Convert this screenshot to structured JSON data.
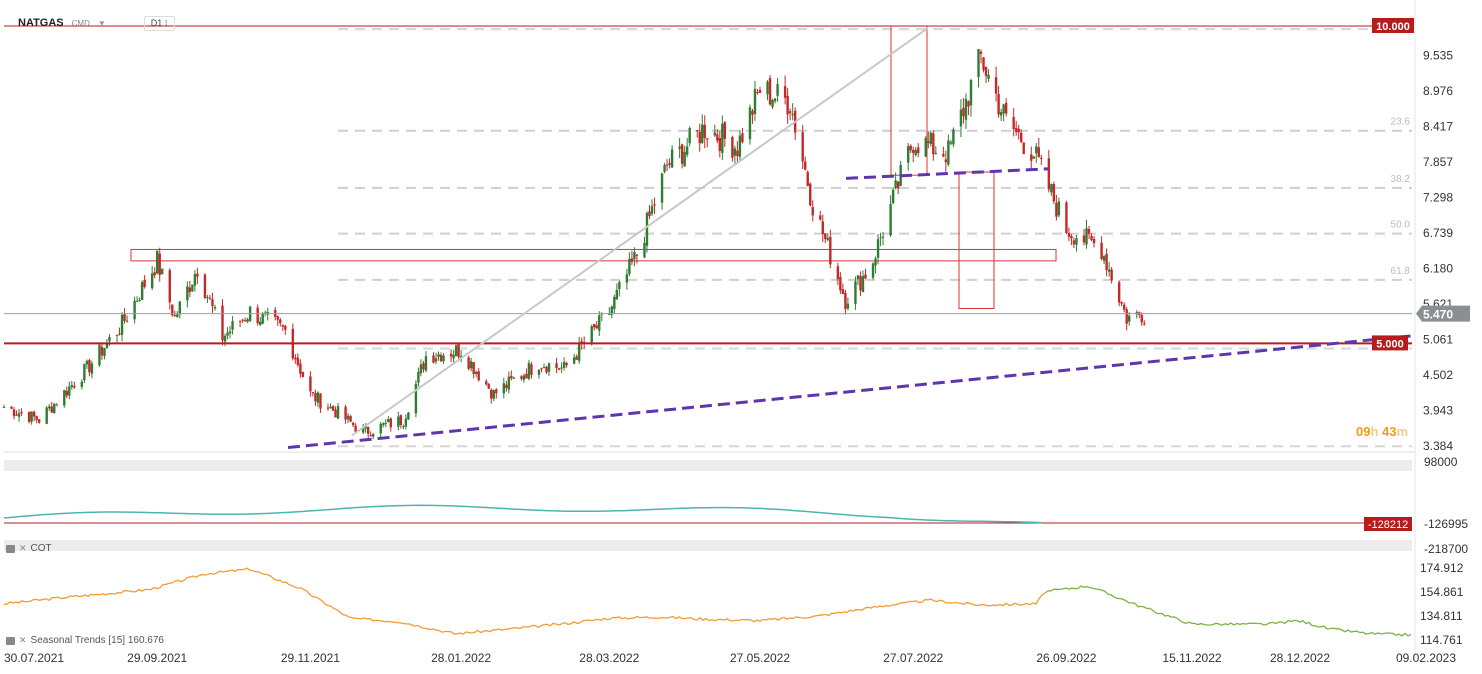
{
  "header": {
    "symbol": "NATGAS",
    "type": "CMD",
    "timeframe": "D1"
  },
  "price_axis": {
    "labels": [
      "9.535",
      "8.976",
      "8.417",
      "7.857",
      "7.298",
      "6.739",
      "6.180",
      "5.621",
      "5.061",
      "4.502",
      "3.943",
      "3.384"
    ]
  },
  "price_tags": {
    "level_10": "10.000",
    "current": "5.470",
    "level_5": "5.000"
  },
  "fib_labels": [
    "23.6",
    "38.2",
    "50.0",
    "61.8"
  ],
  "countdown": {
    "hours": "09",
    "h": "h",
    "minutes": "43",
    "m": "m"
  },
  "cot_panel": {
    "label": "COT",
    "axis": [
      "98000",
      "-126995",
      "-218700"
    ],
    "tag": "-128212"
  },
  "seasonal_panel": {
    "label": "Seasonal  Trends  [15]  160.676",
    "axis": [
      "174.912",
      "154.861",
      "134.811",
      "114.761"
    ]
  },
  "date_axis": [
    "30.07.2021",
    "29.09.2021",
    "29.11.2021",
    "28.01.2022",
    "28.03.2022",
    "27.05.2022",
    "27.07.2022",
    "26.09.2022",
    "15.11.2022",
    "28.12.2022",
    "09.02.2023"
  ],
  "colors": {
    "up": "#2e7d32",
    "down": "#c62828",
    "tag": "#b71c1c",
    "trend": "#5e35b1",
    "cot": "#4db6ac",
    "seasonal": "#f39c34",
    "seasonal_proj": "#7cb342",
    "current_tag": "#8a8f94"
  },
  "chart_data": [
    {
      "type": "candlestick",
      "title": "NATGAS D1",
      "ylim": [
        3.2,
        10.2
      ],
      "x_range": [
        "30.07.2021",
        "09.02.2023"
      ],
      "anchor_closes": [
        [
          "30.07.2021",
          4.0
        ],
        [
          "13.08.2021",
          3.8
        ],
        [
          "01.09.2021",
          4.6
        ],
        [
          "15.09.2021",
          5.3
        ],
        [
          "29.09.2021",
          6.3
        ],
        [
          "06.10.2021",
          5.4
        ],
        [
          "15.10.2021",
          6.2
        ],
        [
          "25.10.2021",
          5.1
        ],
        [
          "05.11.2021",
          5.5
        ],
        [
          "19.11.2021",
          5.2
        ],
        [
          "29.11.2021",
          4.2
        ],
        [
          "10.12.2021",
          3.9
        ],
        [
          "20.12.2021",
          3.6
        ],
        [
          "05.01.2022",
          3.8
        ],
        [
          "14.01.2022",
          4.8
        ],
        [
          "28.01.2022",
          4.9
        ],
        [
          "10.02.2022",
          4.2
        ],
        [
          "28.02.2022",
          4.7
        ],
        [
          "10.03.2022",
          4.6
        ],
        [
          "28.03.2022",
          5.5
        ],
        [
          "08.04.2022",
          6.4
        ],
        [
          "20.04.2022",
          7.8
        ],
        [
          "05.05.2022",
          8.4
        ],
        [
          "18.05.2022",
          8.1
        ],
        [
          "27.05.2022",
          9.0
        ],
        [
          "08.06.2022",
          8.8
        ],
        [
          "17.06.2022",
          7.2
        ],
        [
          "30.06.2022",
          5.7
        ],
        [
          "10.07.2022",
          6.2
        ],
        [
          "27.07.2022",
          8.2
        ],
        [
          "10.08.2022",
          8.0
        ],
        [
          "23.08.2022",
          9.5
        ],
        [
          "02.09.2022",
          8.5
        ],
        [
          "13.09.2022",
          8.0
        ],
        [
          "26.09.2022",
          6.8
        ],
        [
          "10.10.2022",
          6.5
        ],
        [
          "20.10.2022",
          5.4
        ],
        [
          "27.10.2022",
          5.47
        ]
      ],
      "levels": {
        "resistance": 10.0,
        "support": 5.0,
        "current": 5.47
      },
      "fibonacci": {
        "23.6": 8.35,
        "38.2": 7.45,
        "50.0": 6.73,
        "61.8": 6.0
      }
    },
    {
      "type": "line",
      "title": "COT",
      "ylim": [
        -218700,
        98000
      ],
      "last": -128212
    },
    {
      "type": "line",
      "title": "Seasonal Trends [15]",
      "ylim": [
        114.761,
        174.912
      ],
      "last": 160.676
    }
  ]
}
